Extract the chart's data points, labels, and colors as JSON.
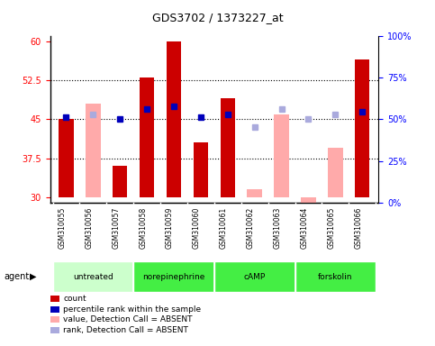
{
  "title": "GDS3702 / 1373227_at",
  "samples": [
    "GSM310055",
    "GSM310056",
    "GSM310057",
    "GSM310058",
    "GSM310059",
    "GSM310060",
    "GSM310061",
    "GSM310062",
    "GSM310063",
    "GSM310064",
    "GSM310065",
    "GSM310066"
  ],
  "red_bars": [
    45.0,
    null,
    36.0,
    53.0,
    60.0,
    40.5,
    49.0,
    null,
    null,
    null,
    null,
    56.5
  ],
  "pink_bars": [
    null,
    48.0,
    null,
    null,
    null,
    null,
    null,
    31.5,
    46.0,
    25.0,
    39.5,
    null
  ],
  "blue_squares": [
    45.5,
    null,
    45.0,
    47.0,
    47.5,
    45.5,
    46.0,
    null,
    null,
    null,
    null,
    46.5
  ],
  "lightblue_squares": [
    null,
    46.0,
    null,
    null,
    null,
    null,
    null,
    43.5,
    47.0,
    45.0,
    46.0,
    null
  ],
  "agent_defs": [
    {
      "label": "untreated",
      "start": 0,
      "end": 3,
      "color": "#ccffcc"
    },
    {
      "label": "norepinephrine",
      "start": 3,
      "end": 6,
      "color": "#44ee44"
    },
    {
      "label": "cAMP",
      "start": 6,
      "end": 9,
      "color": "#44ee44"
    },
    {
      "label": "forskolin",
      "start": 9,
      "end": 12,
      "color": "#44ee44"
    }
  ],
  "ylim_left": [
    29,
    61
  ],
  "bar_bottom": 30,
  "yticks_left": [
    30,
    37.5,
    45,
    52.5,
    60
  ],
  "ytick_labels_left": [
    "30",
    "37.5",
    "45",
    "52.5",
    "60"
  ],
  "yticks_right": [
    0,
    25,
    50,
    75,
    100
  ],
  "ytick_labels_right": [
    "0%",
    "25%",
    "50%",
    "75%",
    "100%"
  ],
  "bar_width": 0.55,
  "red_color": "#cc0000",
  "pink_color": "#ffaaaa",
  "blue_color": "#0000bb",
  "lightblue_color": "#aaaadd",
  "xticklabel_bg": "#c8c8c8",
  "legend_items": [
    {
      "label": "count",
      "color": "#cc0000"
    },
    {
      "label": "percentile rank within the sample",
      "color": "#0000bb"
    },
    {
      "label": "value, Detection Call = ABSENT",
      "color": "#ffaaaa"
    },
    {
      "label": "rank, Detection Call = ABSENT",
      "color": "#aaaadd"
    }
  ]
}
